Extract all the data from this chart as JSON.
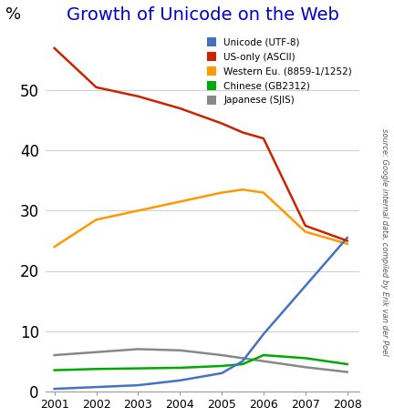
{
  "title": "Growth of Unicode on the Web",
  "ylabel": "%",
  "source_text": "source: Google internal data, compiled by Erik van der Poel",
  "series": {
    "Unicode (UTF-8)": {
      "color": "#4472c4",
      "data_x": [
        2001,
        2002,
        2003,
        2004,
        2005,
        2005.5,
        2006,
        2007,
        2008
      ],
      "data_y": [
        0.4,
        0.7,
        1.0,
        1.8,
        3.0,
        5.0,
        9.5,
        17.5,
        25.5
      ]
    },
    "US-only (ASCII)": {
      "color": "#cc2200",
      "data_x": [
        2001,
        2002,
        2003,
        2004,
        2005,
        2005.5,
        2006,
        2007,
        2008
      ],
      "data_y": [
        57.0,
        50.5,
        49.0,
        47.0,
        44.5,
        43.0,
        42.0,
        27.5,
        25.0
      ]
    },
    "Western Eu. (8859-1/1252)": {
      "color": "#ff9900",
      "data_x": [
        2001,
        2002,
        2003,
        2004,
        2005,
        2005.5,
        2006,
        2007,
        2008
      ],
      "data_y": [
        24.0,
        28.5,
        30.0,
        31.5,
        33.0,
        33.5,
        33.0,
        26.5,
        24.5
      ]
    },
    "Chinese (GB2312)": {
      "color": "#00aa00",
      "data_x": [
        2001,
        2002,
        2003,
        2004,
        2005,
        2005.5,
        2006,
        2007,
        2008
      ],
      "data_y": [
        3.5,
        3.7,
        3.8,
        3.9,
        4.2,
        4.5,
        6.0,
        5.5,
        4.5
      ]
    },
    "Japanese (SJIS)": {
      "color": "#888888",
      "data_x": [
        2001,
        2002,
        2003,
        2004,
        2005,
        2005.5,
        2006,
        2007,
        2008
      ],
      "data_y": [
        6.0,
        6.5,
        7.0,
        6.8,
        6.0,
        5.5,
        5.0,
        4.0,
        3.2
      ]
    }
  },
  "xlim": [
    2001,
    2008
  ],
  "ylim": [
    0,
    60
  ],
  "yticks": [
    0,
    10,
    20,
    30,
    40,
    50
  ],
  "xticks": [
    2001,
    2002,
    2003,
    2004,
    2005,
    2006,
    2007,
    2008
  ],
  "background_color": "#ffffff",
  "grid_color": "#cccccc",
  "title_color": "#0000cc"
}
